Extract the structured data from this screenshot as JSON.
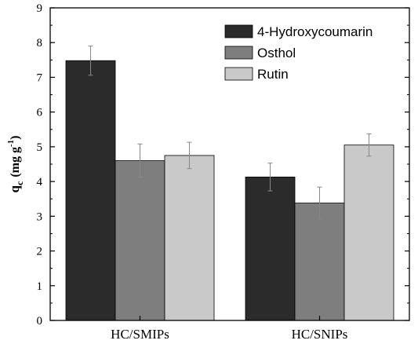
{
  "chart_data": {
    "type": "bar",
    "categories": [
      "HC/SMIPs",
      "HC/SNIPs"
    ],
    "series": [
      {
        "name": "4-Hydroxycoumarin",
        "color": "#2b2b2b",
        "values": [
          7.48,
          4.13
        ],
        "errors": [
          0.42,
          0.4
        ]
      },
      {
        "name": "Osthol",
        "color": "#7e7e7e",
        "values": [
          4.6,
          3.38
        ],
        "errors": [
          0.48,
          0.46
        ]
      },
      {
        "name": "Rutin",
        "color": "#c9c9c9",
        "values": [
          4.75,
          5.05
        ],
        "errors": [
          0.38,
          0.32
        ]
      }
    ],
    "ylabel": {
      "base": "q",
      "sub": "c",
      "units": "(mg g",
      "sup": "-1",
      "close": ")"
    },
    "ylim": [
      0,
      9
    ],
    "yticks": [
      "0",
      "1",
      "2",
      "3",
      "4",
      "5",
      "6",
      "7",
      "8",
      "9"
    ],
    "legend_position": "top-right",
    "grid": false
  }
}
